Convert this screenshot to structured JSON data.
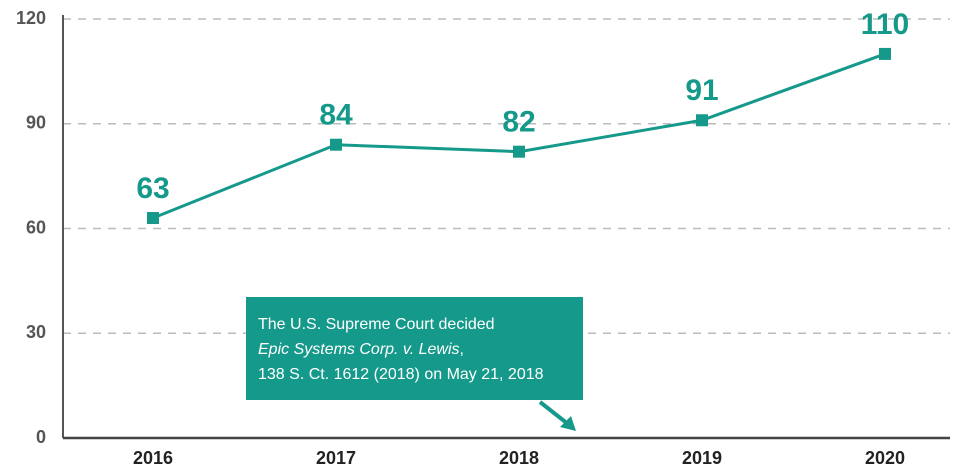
{
  "chart_data": {
    "type": "line",
    "categories": [
      "2016",
      "2017",
      "2018",
      "2019",
      "2020"
    ],
    "series": [
      {
        "name": null,
        "color": "#15998a",
        "values": [
          63,
          84,
          82,
          91,
          110
        ]
      }
    ],
    "ylim": [
      0,
      120
    ],
    "yticks": [
      0,
      30,
      60,
      90,
      120
    ],
    "grid": true,
    "annotation": [
      "The U.S. Supreme Court decided",
      "Epic Systems Corp. v. Lewis",
      ",",
      "138 S. Ct. 1612 (2018) on May 21, 2018"
    ]
  }
}
